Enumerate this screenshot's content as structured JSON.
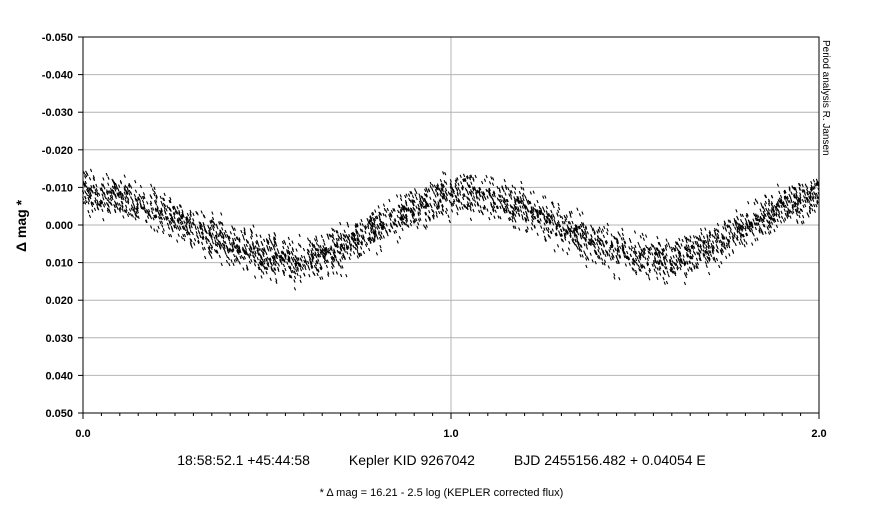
{
  "chart_data": {
    "type": "scatter",
    "ylabel": "Δ mag *",
    "xlim": [
      0.0,
      2.0
    ],
    "ylim": [
      -0.05,
      0.05
    ],
    "y_inverted": true,
    "grid": true,
    "x_ticks": [
      "0.0",
      "1.0",
      "2.0"
    ],
    "x_tick_values": [
      0.0,
      1.0,
      2.0
    ],
    "y_ticks": [
      "-0.050",
      "-0.040",
      "-0.030",
      "-0.020",
      "-0.010",
      "0.000",
      "0.010",
      "0.020",
      "0.030",
      "0.040",
      "0.050"
    ],
    "y_tick_values": [
      -0.05,
      -0.04,
      -0.03,
      -0.02,
      -0.01,
      0.0,
      0.01,
      0.02,
      0.03,
      0.04,
      0.05
    ],
    "series": [
      {
        "description_of_shape": "sinusoidal band",
        "x": [
          0.0,
          0.1,
          0.2,
          0.3,
          0.4,
          0.5,
          0.6,
          0.7,
          0.8,
          0.9,
          1.0,
          1.1,
          1.2,
          1.3,
          1.4,
          1.5,
          1.6,
          1.7,
          1.8,
          1.9,
          2.0
        ],
        "y_center": [
          -0.0085,
          -0.0075,
          -0.004,
          0.0005,
          0.005,
          0.0085,
          0.0095,
          0.0065,
          0.001,
          -0.0045,
          -0.0085,
          -0.0075,
          -0.004,
          0.0005,
          0.005,
          0.0085,
          0.0095,
          0.0065,
          0.001,
          -0.0045,
          -0.0085
        ],
        "y_spread": 0.0095,
        "color": "#000000"
      }
    ],
    "side_note": "Period analysis  R. Jansen",
    "caption_coords": "18:58:52.1 +45:44:58",
    "caption_star": "Kepler KID 9267042",
    "caption_ephemeris": "BJD 2455156.482 + 0.04054 E",
    "footnote": "* Δ mag = 16.21 - 2.5 log (KEPLER corrected flux)"
  }
}
